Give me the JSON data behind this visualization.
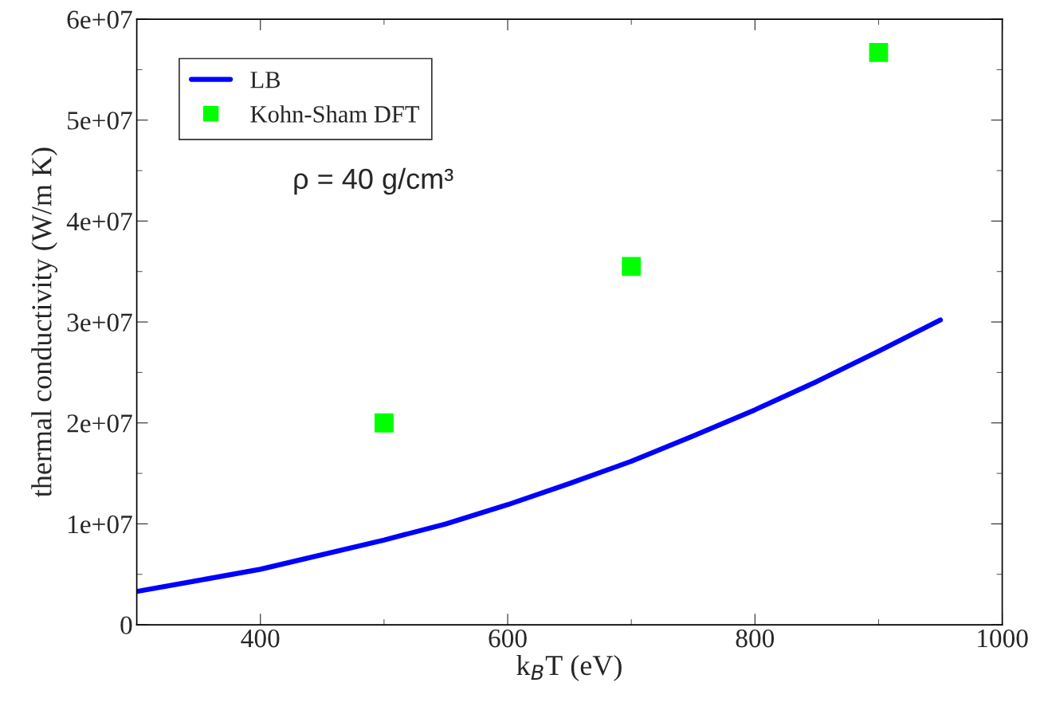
{
  "chart_data": {
    "type": "line",
    "xlabel": "k$_{B}$T (eV)",
    "ylabel": "thermal conductivity (W/m K)",
    "xlim": [
      300,
      1000
    ],
    "xticks": [
      400,
      600,
      800,
      1000
    ],
    "ylim": [
      0,
      60000000
    ],
    "yticks": [
      0,
      {
        "value": 10000000,
        "label": "1e+07"
      },
      {
        "value": 20000000,
        "label": "2e+07"
      },
      {
        "value": 30000000,
        "label": "3e+07"
      },
      {
        "value": 40000000,
        "label": "4e+07"
      },
      {
        "value": 50000000,
        "label": "5e+07"
      },
      {
        "value": 60000000,
        "label": "6e+07"
      }
    ],
    "series": [
      {
        "name": "LB",
        "color": "#0000ff",
        "marker": "none",
        "line_style": "solid",
        "x": [
          300,
          350,
          400,
          500,
          550,
          600,
          650,
          700,
          750,
          800,
          850,
          900,
          950
        ],
        "values": [
          3300000,
          4400000,
          5500000,
          8400000,
          10000000,
          11900000,
          14000000,
          16200000,
          18700000,
          21300000,
          24100000,
          27100000,
          30200000
        ]
      },
      {
        "name": "Kohn-Sham DFT",
        "type": "scatter",
        "color": "#00ff00",
        "marker": "square",
        "x": [
          500,
          700,
          900
        ],
        "values": [
          20000000,
          35500000,
          56700000
        ]
      }
    ],
    "annotations": [
      "ρ = 40 g/cm³"
    ],
    "legend": "top left",
    "grid": false
  }
}
